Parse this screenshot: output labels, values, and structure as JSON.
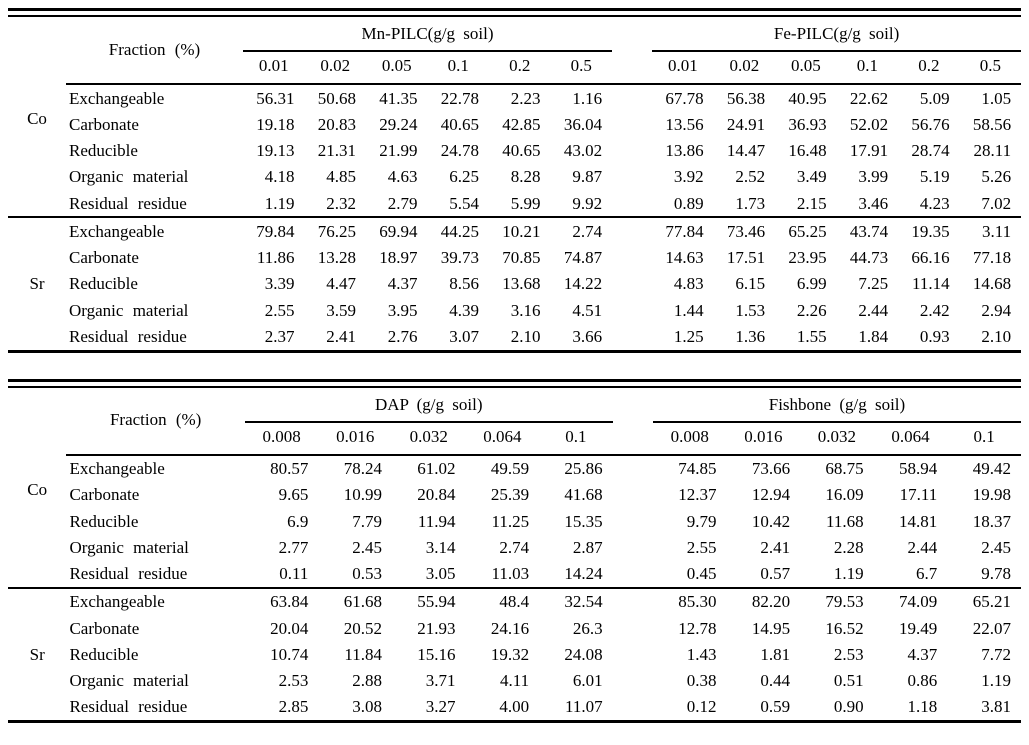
{
  "colors": {
    "text": "#000000",
    "background": "#ffffff",
    "rule": "#000000"
  },
  "chart_data": [
    {
      "type": "table",
      "fraction_header": "Fraction (%)",
      "groups": [
        {
          "label": "Mn-PILC(g/g soil)",
          "concentrations": [
            "0.01",
            "0.02",
            "0.05",
            "0.1",
            "0.2",
            "0.5"
          ]
        },
        {
          "label": "Fe-PILC(g/g soil)",
          "concentrations": [
            "0.01",
            "0.02",
            "0.05",
            "0.1",
            "0.2",
            "0.5"
          ]
        }
      ],
      "sections": [
        {
          "element": "Co",
          "rows": [
            {
              "label": "Exchangeable",
              "values": [
                "56.31",
                "50.68",
                "41.35",
                "22.78",
                "2.23",
                "1.16",
                "67.78",
                "56.38",
                "40.95",
                "22.62",
                "5.09",
                "1.05"
              ]
            },
            {
              "label": "Carbonate",
              "values": [
                "19.18",
                "20.83",
                "29.24",
                "40.65",
                "42.85",
                "36.04",
                "13.56",
                "24.91",
                "36.93",
                "52.02",
                "56.76",
                "58.56"
              ]
            },
            {
              "label": "Reducible",
              "values": [
                "19.13",
                "21.31",
                "21.99",
                "24.78",
                "40.65",
                "43.02",
                "13.86",
                "14.47",
                "16.48",
                "17.91",
                "28.74",
                "28.11"
              ]
            },
            {
              "label": "Organic material",
              "values": [
                "4.18",
                "4.85",
                "4.63",
                "6.25",
                "8.28",
                "9.87",
                "3.92",
                "2.52",
                "3.49",
                "3.99",
                "5.19",
                "5.26"
              ]
            },
            {
              "label": "Residual residue",
              "values": [
                "1.19",
                "2.32",
                "2.79",
                "5.54",
                "5.99",
                "9.92",
                "0.89",
                "1.73",
                "2.15",
                "3.46",
                "4.23",
                "7.02"
              ]
            }
          ]
        },
        {
          "element": "Sr",
          "rows": [
            {
              "label": "Exchangeable",
              "values": [
                "79.84",
                "76.25",
                "69.94",
                "44.25",
                "10.21",
                "2.74",
                "77.84",
                "73.46",
                "65.25",
                "43.74",
                "19.35",
                "3.11"
              ]
            },
            {
              "label": "Carbonate",
              "values": [
                "11.86",
                "13.28",
                "18.97",
                "39.73",
                "70.85",
                "74.87",
                "14.63",
                "17.51",
                "23.95",
                "44.73",
                "66.16",
                "77.18"
              ]
            },
            {
              "label": "Reducible",
              "values": [
                "3.39",
                "4.47",
                "4.37",
                "8.56",
                "13.68",
                "14.22",
                "4.83",
                "6.15",
                "6.99",
                "7.25",
                "11.14",
                "14.68"
              ]
            },
            {
              "label": "Organic material",
              "values": [
                "2.55",
                "3.59",
                "3.95",
                "4.39",
                "3.16",
                "4.51",
                "1.44",
                "1.53",
                "2.26",
                "2.44",
                "2.42",
                "2.94"
              ]
            },
            {
              "label": "Residual residue",
              "values": [
                "2.37",
                "2.41",
                "2.76",
                "3.07",
                "2.10",
                "3.66",
                "1.25",
                "1.36",
                "1.55",
                "1.84",
                "0.93",
                "2.10"
              ]
            }
          ]
        }
      ]
    },
    {
      "type": "table",
      "fraction_header": "Fraction (%)",
      "groups": [
        {
          "label": "DAP (g/g soil)",
          "concentrations": [
            "0.008",
            "0.016",
            "0.032",
            "0.064",
            "0.1"
          ]
        },
        {
          "label": "Fishbone (g/g soil)",
          "concentrations": [
            "0.008",
            "0.016",
            "0.032",
            "0.064",
            "0.1"
          ]
        }
      ],
      "sections": [
        {
          "element": "Co",
          "rows": [
            {
              "label": "Exchangeable",
              "values": [
                "80.57",
                "78.24",
                "61.02",
                "49.59",
                "25.86",
                "74.85",
                "73.66",
                "68.75",
                "58.94",
                "49.42"
              ]
            },
            {
              "label": "Carbonate",
              "values": [
                "9.65",
                "10.99",
                "20.84",
                "25.39",
                "41.68",
                "12.37",
                "12.94",
                "16.09",
                "17.11",
                "19.98"
              ]
            },
            {
              "label": "Reducible",
              "values": [
                "6.9",
                "7.79",
                "11.94",
                "11.25",
                "15.35",
                "9.79",
                "10.42",
                "11.68",
                "14.81",
                "18.37"
              ]
            },
            {
              "label": "Organic material",
              "values": [
                "2.77",
                "2.45",
                "3.14",
                "2.74",
                "2.87",
                "2.55",
                "2.41",
                "2.28",
                "2.44",
                "2.45"
              ]
            },
            {
              "label": "Residual residue",
              "values": [
                "0.11",
                "0.53",
                "3.05",
                "11.03",
                "14.24",
                "0.45",
                "0.57",
                "1.19",
                "6.7",
                "9.78"
              ]
            }
          ]
        },
        {
          "element": "Sr",
          "rows": [
            {
              "label": "Exchangeable",
              "values": [
                "63.84",
                "61.68",
                "55.94",
                "48.4",
                "32.54",
                "85.30",
                "82.20",
                "79.53",
                "74.09",
                "65.21"
              ]
            },
            {
              "label": "Carbonate",
              "values": [
                "20.04",
                "20.52",
                "21.93",
                "24.16",
                "26.3",
                "12.78",
                "14.95",
                "16.52",
                "19.49",
                "22.07"
              ]
            },
            {
              "label": "Reducible",
              "values": [
                "10.74",
                "11.84",
                "15.16",
                "19.32",
                "24.08",
                "1.43",
                "1.81",
                "2.53",
                "4.37",
                "7.72"
              ]
            },
            {
              "label": "Organic material",
              "values": [
                "2.53",
                "2.88",
                "3.71",
                "4.11",
                "6.01",
                "0.38",
                "0.44",
                "0.51",
                "0.86",
                "1.19"
              ]
            },
            {
              "label": "Residual residue",
              "values": [
                "2.85",
                "3.08",
                "3.27",
                "4.00",
                "11.07",
                "0.12",
                "0.59",
                "0.90",
                "1.18",
                "3.81"
              ]
            }
          ]
        }
      ]
    }
  ]
}
